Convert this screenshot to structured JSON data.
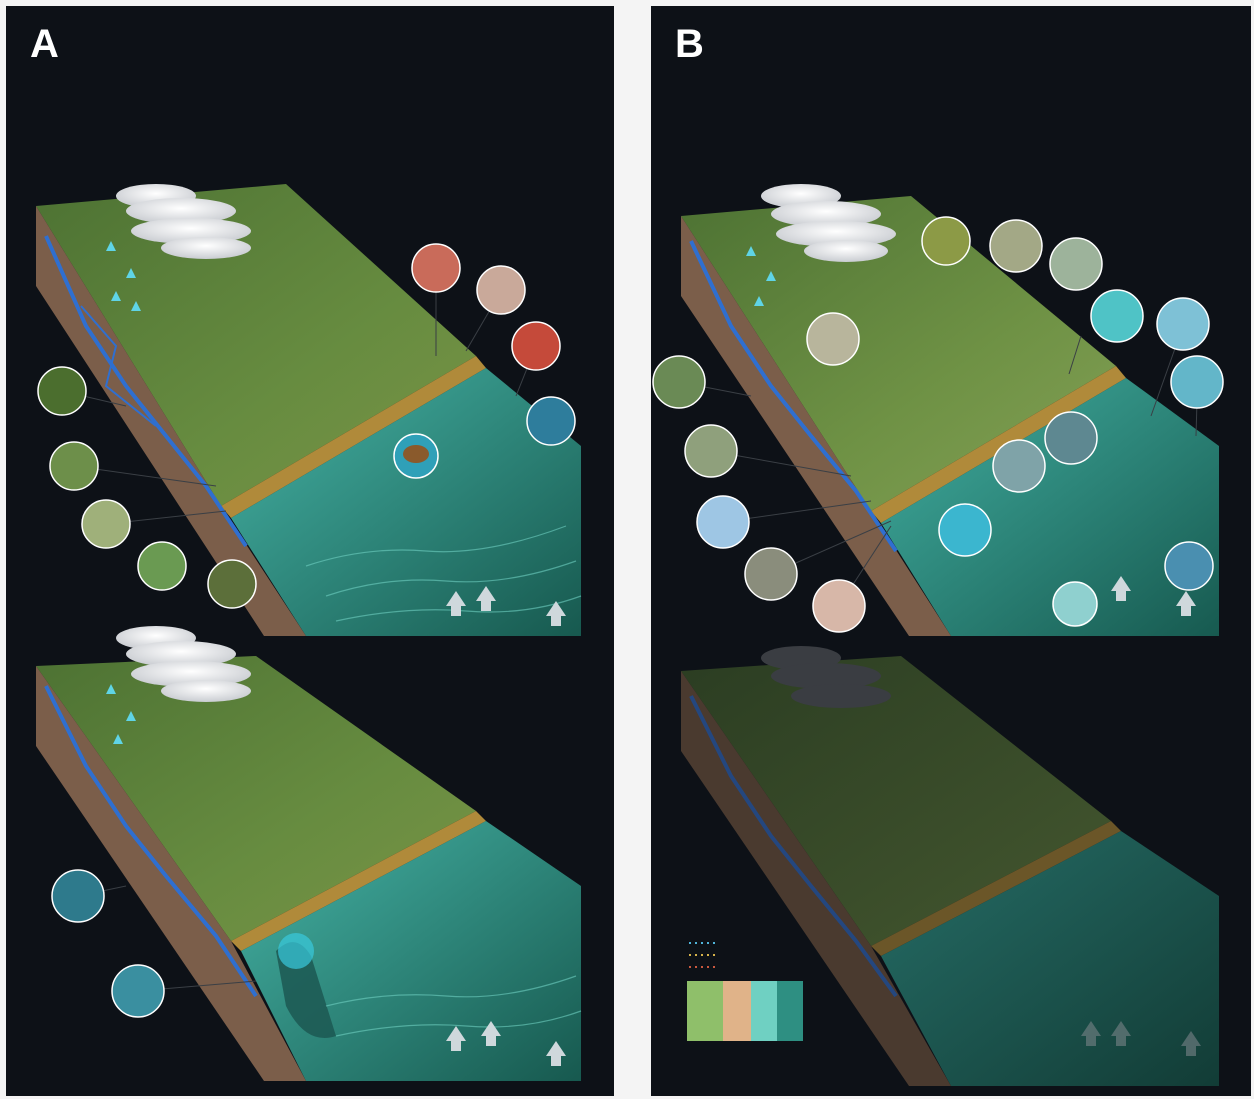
{
  "panels": [
    {
      "id": "a",
      "label": "A"
    },
    {
      "id": "b",
      "label": "B"
    }
  ],
  "legend": {
    "lines": [
      {
        "text": "",
        "color": "#4fb3d9"
      },
      {
        "text": "",
        "color": "#d6b24a"
      },
      {
        "text": "",
        "color": "#c9583f"
      }
    ],
    "zones": [
      "",
      "",
      "",
      ""
    ]
  },
  "colors": {
    "background": "#0d1117",
    "land": "#5d7d3a",
    "land_dark": "#3e5a26",
    "sea": "#2f9e8f",
    "sea_deep": "#1f6f63",
    "soil": "#8a6a52",
    "river": "#2f6fd0",
    "sand": "#c9a24a"
  }
}
